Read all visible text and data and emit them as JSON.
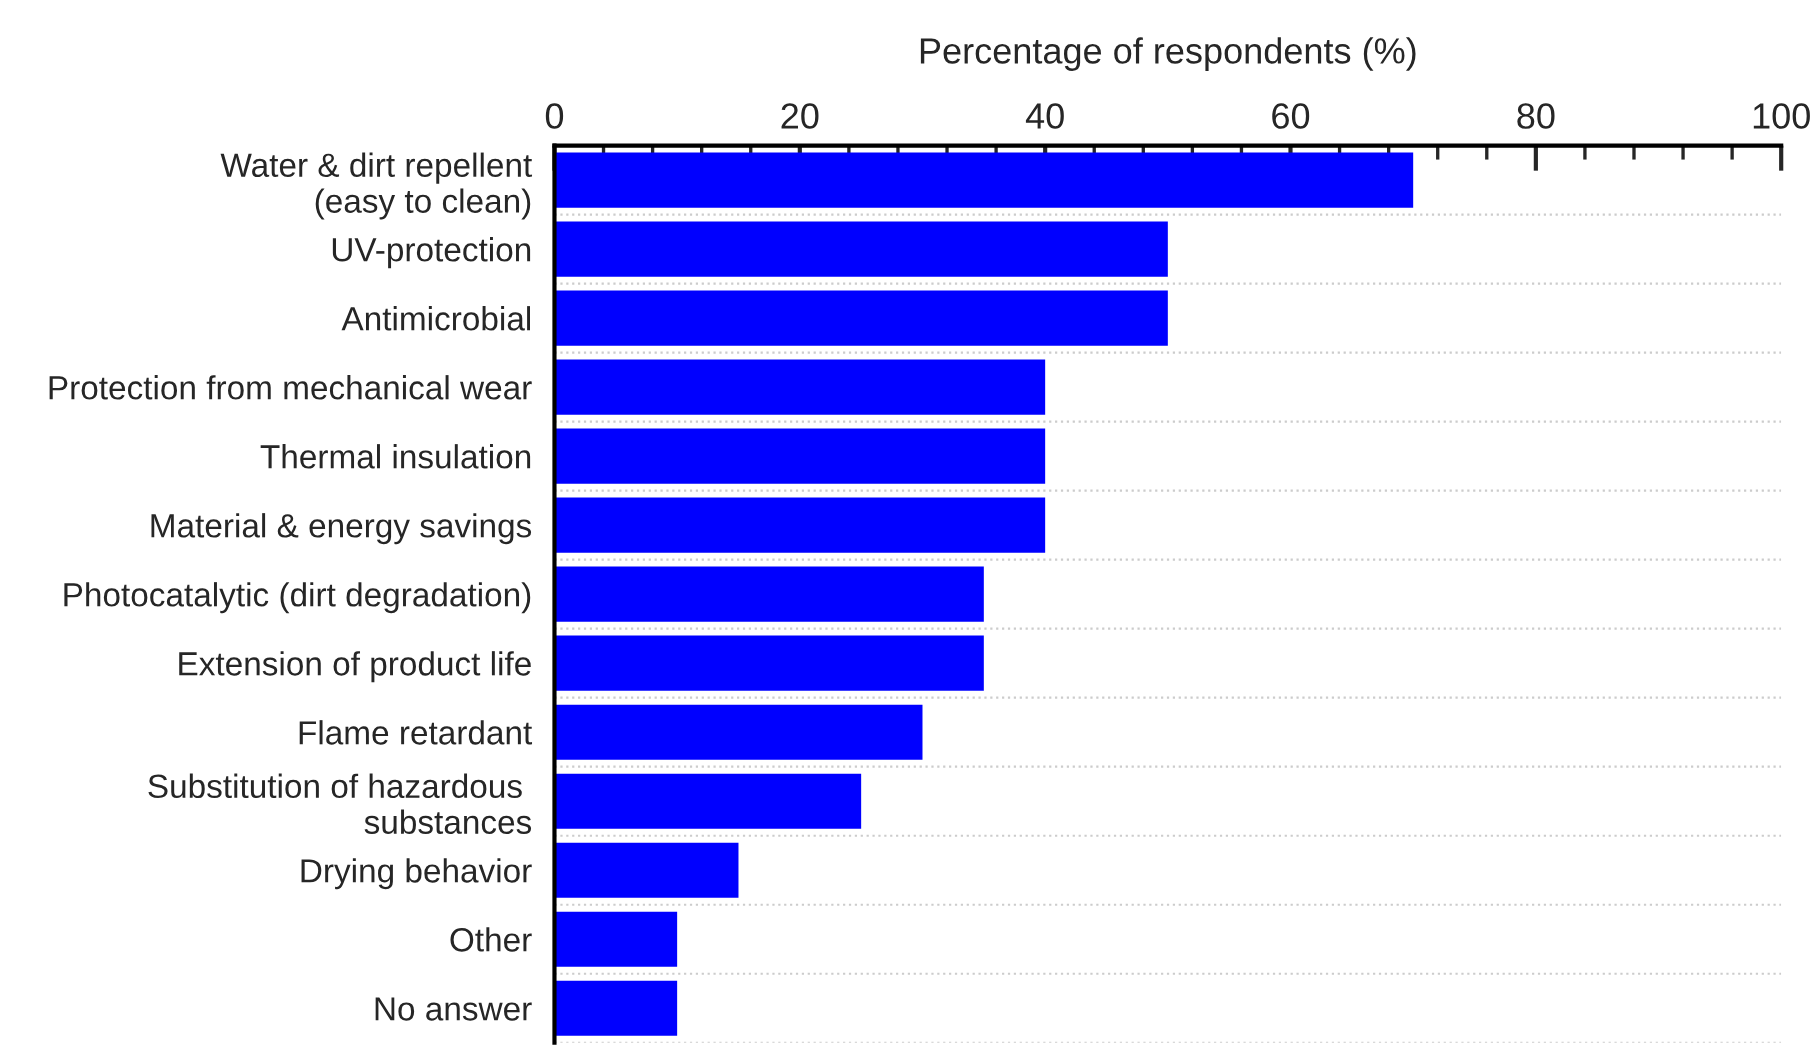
{
  "chart_data": {
    "type": "bar",
    "orientation": "horizontal",
    "xlabel": "Percentage of respondents (%)",
    "categories": [
      "Water & dirt repellent\n(easy to clean)",
      "UV-protection",
      "Antimicrobial",
      "Protection from mechanical wear",
      "Thermal insulation",
      "Material & energy savings",
      "Photocatalytic (dirt degradation)",
      "Extension of product life",
      "Flame retardant",
      "Substitution of hazardous \nsubstances",
      "Drying behavior",
      "Other",
      "No answer"
    ],
    "values": [
      70,
      50,
      50,
      40,
      40,
      40,
      35,
      35,
      30,
      25,
      15,
      10,
      10
    ],
    "color": "#0000ff",
    "xlim": [
      0,
      100
    ],
    "xticks": [
      0,
      20,
      40,
      60,
      80,
      100
    ],
    "grid": "y",
    "legend": false
  }
}
